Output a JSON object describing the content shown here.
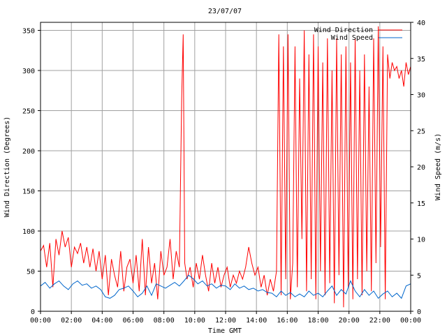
{
  "chart_data": {
    "type": "line",
    "title": "23/07/07",
    "xlabel": "Time GMT",
    "ylabel_left": "Wind Direction (Degrees)",
    "ylabel_right": "Wind Speed (m/s)",
    "x_ticks": [
      "00:00",
      "02:00",
      "04:00",
      "06:00",
      "08:00",
      "10:00",
      "12:00",
      "14:00",
      "16:00",
      "18:00",
      "20:00",
      "22:00",
      "00:00"
    ],
    "x_range_hours": [
      0,
      24
    ],
    "ylim_left": [
      0,
      360
    ],
    "yticks_left": [
      0,
      50,
      100,
      150,
      200,
      250,
      300,
      350
    ],
    "ylim_right": [
      0,
      40
    ],
    "yticks_right": [
      0,
      5,
      10,
      15,
      20,
      25,
      30,
      35,
      40
    ],
    "grid": true,
    "legend_position": "top-right",
    "series": [
      {
        "name": "Wind Direction",
        "axis": "left",
        "color": "#ff0000",
        "points": [
          [
            0.0,
            75
          ],
          [
            0.2,
            82
          ],
          [
            0.4,
            55
          ],
          [
            0.6,
            85
          ],
          [
            0.8,
            30
          ],
          [
            1.0,
            90
          ],
          [
            1.2,
            70
          ],
          [
            1.4,
            100
          ],
          [
            1.6,
            80
          ],
          [
            1.8,
            92
          ],
          [
            2.0,
            55
          ],
          [
            2.2,
            80
          ],
          [
            2.4,
            72
          ],
          [
            2.6,
            85
          ],
          [
            2.8,
            60
          ],
          [
            3.0,
            80
          ],
          [
            3.2,
            55
          ],
          [
            3.4,
            78
          ],
          [
            3.6,
            50
          ],
          [
            3.8,
            75
          ],
          [
            4.0,
            40
          ],
          [
            4.2,
            70
          ],
          [
            4.4,
            20
          ],
          [
            4.6,
            65
          ],
          [
            4.8,
            45
          ],
          [
            5.0,
            30
          ],
          [
            5.2,
            75
          ],
          [
            5.4,
            25
          ],
          [
            5.6,
            55
          ],
          [
            5.8,
            65
          ],
          [
            6.0,
            35
          ],
          [
            6.2,
            70
          ],
          [
            6.4,
            25
          ],
          [
            6.6,
            90
          ],
          [
            6.8,
            20
          ],
          [
            7.0,
            80
          ],
          [
            7.2,
            35
          ],
          [
            7.4,
            60
          ],
          [
            7.6,
            15
          ],
          [
            7.8,
            75
          ],
          [
            8.0,
            45
          ],
          [
            8.2,
            55
          ],
          [
            8.4,
            90
          ],
          [
            8.6,
            40
          ],
          [
            8.8,
            75
          ],
          [
            9.0,
            55
          ],
          [
            9.15,
            265
          ],
          [
            9.25,
            345
          ],
          [
            9.35,
            60
          ],
          [
            9.5,
            40
          ],
          [
            9.7,
            55
          ],
          [
            9.9,
            30
          ],
          [
            10.1,
            60
          ],
          [
            10.3,
            40
          ],
          [
            10.5,
            70
          ],
          [
            10.7,
            45
          ],
          [
            10.9,
            25
          ],
          [
            11.1,
            60
          ],
          [
            11.3,
            35
          ],
          [
            11.5,
            55
          ],
          [
            11.7,
            30
          ],
          [
            11.9,
            45
          ],
          [
            12.1,
            55
          ],
          [
            12.3,
            30
          ],
          [
            12.5,
            45
          ],
          [
            12.7,
            35
          ],
          [
            12.9,
            50
          ],
          [
            13.1,
            40
          ],
          [
            13.3,
            55
          ],
          [
            13.5,
            80
          ],
          [
            13.7,
            60
          ],
          [
            13.9,
            45
          ],
          [
            14.1,
            55
          ],
          [
            14.3,
            30
          ],
          [
            14.5,
            45
          ],
          [
            14.7,
            20
          ],
          [
            14.9,
            40
          ],
          [
            15.1,
            25
          ],
          [
            15.3,
            50
          ],
          [
            15.45,
            345
          ],
          [
            15.6,
            20
          ],
          [
            15.75,
            330
          ],
          [
            15.9,
            40
          ],
          [
            16.05,
            345
          ],
          [
            16.2,
            15
          ],
          [
            16.35,
            60
          ],
          [
            16.5,
            330
          ],
          [
            16.65,
            30
          ],
          [
            16.8,
            290
          ],
          [
            16.95,
            90
          ],
          [
            17.1,
            350
          ],
          [
            17.25,
            25
          ],
          [
            17.4,
            320
          ],
          [
            17.55,
            40
          ],
          [
            17.7,
            345
          ],
          [
            17.85,
            15
          ],
          [
            18.0,
            330
          ],
          [
            18.15,
            50
          ],
          [
            18.3,
            310
          ],
          [
            18.45,
            20
          ],
          [
            18.6,
            340
          ],
          [
            18.75,
            35
          ],
          [
            18.9,
            300
          ],
          [
            19.05,
            10
          ],
          [
            19.2,
            340
          ],
          [
            19.35,
            45
          ],
          [
            19.5,
            320
          ],
          [
            19.65,
            5
          ],
          [
            19.8,
            330
          ],
          [
            19.95,
            30
          ],
          [
            20.1,
            310
          ],
          [
            20.25,
            15
          ],
          [
            20.4,
            340
          ],
          [
            20.55,
            40
          ],
          [
            20.7,
            300
          ],
          [
            20.85,
            20
          ],
          [
            21.0,
            320
          ],
          [
            21.15,
            50
          ],
          [
            21.3,
            280
          ],
          [
            21.45,
            25
          ],
          [
            21.6,
            340
          ],
          [
            21.75,
            60
          ],
          [
            21.9,
            355
          ],
          [
            22.05,
            80
          ],
          [
            22.2,
            330
          ],
          [
            22.35,
            15
          ],
          [
            22.5,
            320
          ],
          [
            22.65,
            290
          ],
          [
            22.8,
            310
          ],
          [
            22.95,
            300
          ],
          [
            23.1,
            305
          ],
          [
            23.25,
            290
          ],
          [
            23.4,
            300
          ],
          [
            23.55,
            280
          ],
          [
            23.7,
            310
          ],
          [
            23.85,
            295
          ],
          [
            24.0,
            305
          ]
        ]
      },
      {
        "name": "Wind Speed",
        "axis": "right",
        "color": "#0066cc",
        "points": [
          [
            0.0,
            3.5
          ],
          [
            0.3,
            4.0
          ],
          [
            0.6,
            3.2
          ],
          [
            0.9,
            3.8
          ],
          [
            1.2,
            4.2
          ],
          [
            1.5,
            3.5
          ],
          [
            1.8,
            3.0
          ],
          [
            2.1,
            3.8
          ],
          [
            2.4,
            4.2
          ],
          [
            2.7,
            3.6
          ],
          [
            3.0,
            3.8
          ],
          [
            3.3,
            3.2
          ],
          [
            3.6,
            3.5
          ],
          [
            3.9,
            3.0
          ],
          [
            4.2,
            2.0
          ],
          [
            4.5,
            1.8
          ],
          [
            4.8,
            2.2
          ],
          [
            5.1,
            3.0
          ],
          [
            5.4,
            3.2
          ],
          [
            5.7,
            3.5
          ],
          [
            6.0,
            2.8
          ],
          [
            6.3,
            2.0
          ],
          [
            6.6,
            2.5
          ],
          [
            6.9,
            3.5
          ],
          [
            7.2,
            2.2
          ],
          [
            7.5,
            3.8
          ],
          [
            7.8,
            3.5
          ],
          [
            8.1,
            3.2
          ],
          [
            8.4,
            3.6
          ],
          [
            8.7,
            4.0
          ],
          [
            9.0,
            3.5
          ],
          [
            9.3,
            4.2
          ],
          [
            9.6,
            5.0
          ],
          [
            9.9,
            4.5
          ],
          [
            10.2,
            3.8
          ],
          [
            10.5,
            4.2
          ],
          [
            10.8,
            3.5
          ],
          [
            11.1,
            3.8
          ],
          [
            11.4,
            3.2
          ],
          [
            11.7,
            3.6
          ],
          [
            12.0,
            3.5
          ],
          [
            12.3,
            3.0
          ],
          [
            12.6,
            3.8
          ],
          [
            12.9,
            3.2
          ],
          [
            13.2,
            3.5
          ],
          [
            13.5,
            3.0
          ],
          [
            13.8,
            3.2
          ],
          [
            14.1,
            2.8
          ],
          [
            14.4,
            3.0
          ],
          [
            14.7,
            2.6
          ],
          [
            15.0,
            2.5
          ],
          [
            15.3,
            2.0
          ],
          [
            15.6,
            2.8
          ],
          [
            15.9,
            2.2
          ],
          [
            16.2,
            2.6
          ],
          [
            16.5,
            2.0
          ],
          [
            16.8,
            2.4
          ],
          [
            17.1,
            2.0
          ],
          [
            17.4,
            2.8
          ],
          [
            17.7,
            2.2
          ],
          [
            18.0,
            2.5
          ],
          [
            18.3,
            2.0
          ],
          [
            18.6,
            2.8
          ],
          [
            18.9,
            3.5
          ],
          [
            19.2,
            2.2
          ],
          [
            19.5,
            3.0
          ],
          [
            19.8,
            2.4
          ],
          [
            20.1,
            4.2
          ],
          [
            20.4,
            2.8
          ],
          [
            20.7,
            2.0
          ],
          [
            21.0,
            3.0
          ],
          [
            21.3,
            2.2
          ],
          [
            21.6,
            2.8
          ],
          [
            21.9,
            1.8
          ],
          [
            22.2,
            2.4
          ],
          [
            22.5,
            2.8
          ],
          [
            22.8,
            2.0
          ],
          [
            23.1,
            2.5
          ],
          [
            23.4,
            1.8
          ],
          [
            23.7,
            3.5
          ],
          [
            24.0,
            3.8
          ]
        ]
      }
    ]
  }
}
